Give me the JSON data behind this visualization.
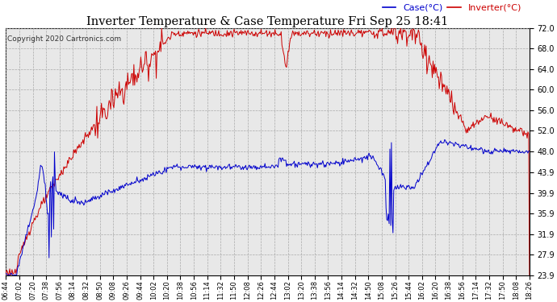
{
  "title": "Inverter Temperature & Case Temperature Fri Sep 25 18:41",
  "copyright": "Copyright 2020 Cartronics.com",
  "legend_case": "Case(°C)",
  "legend_inverter": "Inverter(°C)",
  "case_color": "#0000cc",
  "inverter_color": "#cc0000",
  "background_color": "#ffffff",
  "plot_bg_color": "#e8e8e8",
  "grid_color": "#aaaaaa",
  "yticks": [
    23.9,
    27.9,
    31.9,
    35.9,
    39.9,
    43.9,
    48.0,
    52.0,
    56.0,
    60.0,
    64.0,
    68.0,
    72.0
  ],
  "xtick_labels": [
    "06:44",
    "07:02",
    "07:20",
    "07:38",
    "07:56",
    "08:14",
    "08:32",
    "08:50",
    "09:08",
    "09:26",
    "09:44",
    "10:02",
    "10:20",
    "10:38",
    "10:56",
    "11:14",
    "11:32",
    "11:50",
    "12:08",
    "12:26",
    "12:44",
    "13:02",
    "13:20",
    "13:38",
    "13:56",
    "14:14",
    "14:32",
    "14:50",
    "15:08",
    "15:26",
    "15:44",
    "16:02",
    "16:20",
    "16:38",
    "16:56",
    "17:14",
    "17:32",
    "17:50",
    "18:08",
    "18:26"
  ],
  "ymin": 23.9,
  "ymax": 72.0,
  "figwidth": 6.9,
  "figheight": 3.75,
  "dpi": 100
}
